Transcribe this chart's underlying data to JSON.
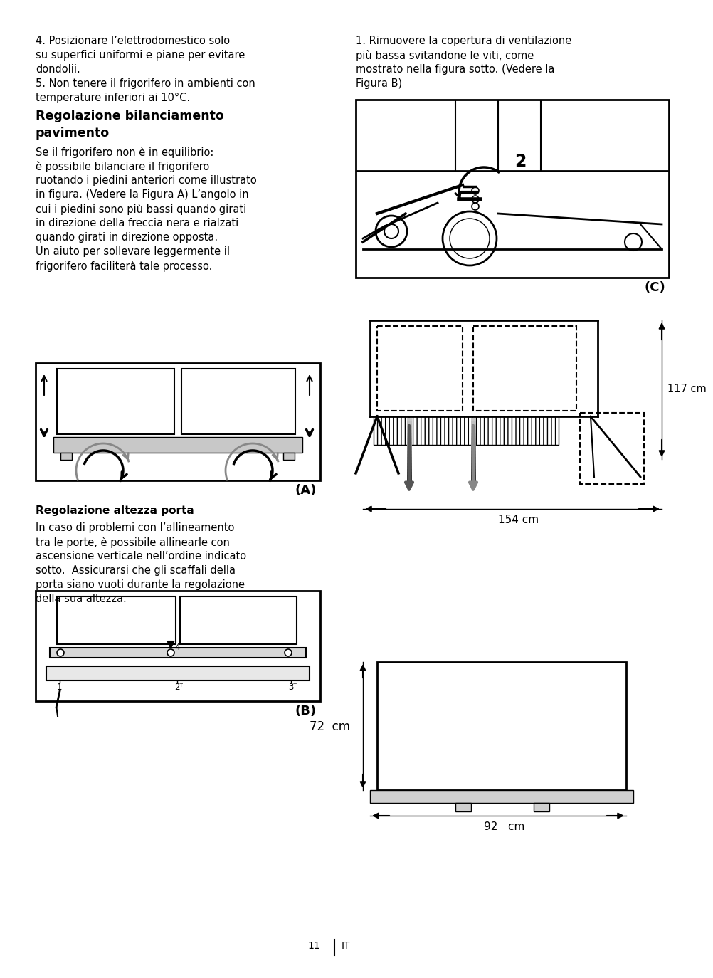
{
  "bg_color": "#ffffff",
  "text_color": "#000000",
  "page_width": 9.54,
  "page_height": 13.54,
  "para1_lines": [
    "4. Posizionare l’elettrodomestico solo",
    "su superfici uniformi e piane per evitare",
    "dondolii.",
    "5. Non tenere il frigorifero in ambienti con",
    "temperature inferiori ai 10°C."
  ],
  "heading_lines": [
    "Regolazione bilanciamento",
    "pavimento"
  ],
  "para2_lines": [
    "Se il frigorifero non è in equilibrio:",
    "è possibile bilanciare il frigorifero",
    "ruotando i piedini anteriori come illustrato",
    "in figura. (Vedere la Figura A) L’angolo in",
    "cui i piedini sono più bassi quando girati",
    "in direzione della freccia nera e rialzati",
    "quando girati in direzione opposta.",
    "Un aiuto per sollevare leggermente il",
    "frigorifero faciliterà tale processo."
  ],
  "right_para1_lines": [
    "1. Rimuovere la copertura di ventilazione",
    "più bassa svitandone le viti, come",
    "mostrato nella figura sotto. (Vedere la",
    "Figura B)"
  ],
  "fig_A_label": "(A)",
  "fig_B_label": "(B)",
  "fig_C_label": "(C)",
  "section2_heading": "Regolazione altezza porta",
  "section2_para": [
    "In caso di problemi con l’allineamento",
    "tra le porte, è possibile allinearle con",
    "ascensione verticale nell’ordine indicato",
    "sotto.  Assicurarsi che gli scaffali della",
    "porta siano vuoti durante la regolazione",
    "della sua altezza."
  ],
  "dim_117": "117 cm",
  "dim_154": "154 cm",
  "dim_72": "72  cm",
  "dim_92": "92   cm",
  "page_num": "11",
  "page_lang": "IT"
}
